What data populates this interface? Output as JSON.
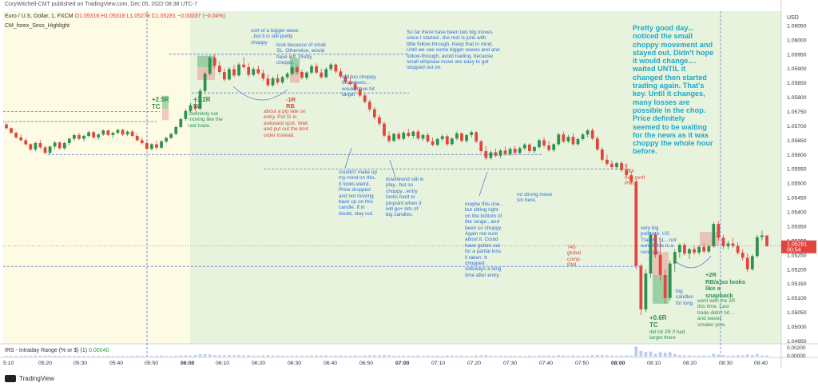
{
  "header": {
    "publish_line": "CoryWitchell-CMT published on TradingView.com, Dec 05, 2022 08:38 UTC-7",
    "symbol_title": "Euro / U.S. Dollar, 1, FXCM",
    "ohlc": "O1.05318 H1.05318 L1.05278 C1.05281 −0.00037 (−0.04%)",
    "indicator": "CM_forex_Sess_Highlight",
    "irs_label": "IRS - Intraday Range (% or $) (1)",
    "irs_value": "0.00040",
    "brand": "TradingView"
  },
  "colors": {
    "up": "#2e9151",
    "down": "#e0463e",
    "session_yellow": "#fdfbe3",
    "session_green": "#e7f3dd",
    "dashed": "#5b7fd6",
    "price_tag": "#e0463e"
  },
  "chart_data": {
    "type": "candlestick",
    "instrument": "EUR/USD",
    "timeframe": "1",
    "currency_label": "USD",
    "y_ticks": [
      "1.06050",
      "1.06000",
      "1.05950",
      "1.05900",
      "1.05850",
      "1.05800",
      "1.05750",
      "1.05700",
      "1.05650",
      "1.05600",
      "1.05550",
      "1.05500",
      "1.05450",
      "1.05400",
      "1.05350",
      "1.05300",
      "1.05250",
      "1.05200",
      "1.05150",
      "1.05100",
      "1.05050",
      "1.05000",
      "1.04950"
    ],
    "x_ticks": [
      "5:10",
      "05:20",
      "05:30",
      "05:40",
      "05:50",
      "06:00",
      "06:10",
      "06:20",
      "06:30",
      "06:40",
      "06:50",
      "07:00",
      "07:10",
      "07:20",
      "07:30",
      "07:40",
      "07:50",
      "08:00",
      "08:10",
      "08:20",
      "08:30",
      "08:40"
    ],
    "bold_x_ticks": [
      "06:00",
      "07:00",
      "08:00"
    ],
    "ylim": [
      1.0494,
      1.061
    ],
    "last_price": "1.05281",
    "countdown": "00:54",
    "irs_ticks": [
      "0.00200",
      "0.00000"
    ],
    "candles": [
      [
        1.05705,
        1.05712,
        1.05688,
        1.05692
      ],
      [
        1.05692,
        1.05695,
        1.05672,
        1.05676
      ],
      [
        1.05676,
        1.0568,
        1.05655,
        1.0566
      ],
      [
        1.0566,
        1.0567,
        1.05646,
        1.0565
      ],
      [
        1.0565,
        1.05656,
        1.0563,
        1.05636
      ],
      [
        1.05636,
        1.0564,
        1.05612,
        1.05618
      ],
      [
        1.05618,
        1.05645,
        1.05612,
        1.0564
      ],
      [
        1.0564,
        1.0565,
        1.0562,
        1.05625
      ],
      [
        1.05625,
        1.0563,
        1.056,
        1.05606
      ],
      [
        1.05606,
        1.05632,
        1.056,
        1.05628
      ],
      [
        1.05628,
        1.05648,
        1.0562,
        1.05642
      ],
      [
        1.05642,
        1.05646,
        1.05618,
        1.05622
      ],
      [
        1.05622,
        1.05645,
        1.05616,
        1.0564
      ],
      [
        1.0564,
        1.0566,
        1.05632,
        1.05655
      ],
      [
        1.05655,
        1.05672,
        1.05648,
        1.05668
      ],
      [
        1.05668,
        1.05676,
        1.0565,
        1.05655
      ],
      [
        1.05655,
        1.0567,
        1.05646,
        1.05665
      ],
      [
        1.05665,
        1.05682,
        1.0566,
        1.05678
      ],
      [
        1.05678,
        1.05682,
        1.05655,
        1.0566
      ],
      [
        1.0566,
        1.05675,
        1.05652,
        1.0567
      ],
      [
        1.0567,
        1.05688,
        1.05665,
        1.05684
      ],
      [
        1.05684,
        1.05688,
        1.05664,
        1.05668
      ],
      [
        1.05668,
        1.0568,
        1.05658,
        1.05676
      ],
      [
        1.05676,
        1.0569,
        1.0567,
        1.05686
      ],
      [
        1.05686,
        1.0569,
        1.05665,
        1.0567
      ],
      [
        1.0567,
        1.05684,
        1.05664,
        1.0568
      ],
      [
        1.0568,
        1.05686,
        1.0566,
        1.05665
      ],
      [
        1.05665,
        1.05675,
        1.05645,
        1.0565
      ],
      [
        1.0565,
        1.0566,
        1.05635,
        1.0564
      ],
      [
        1.0564,
        1.05646,
        1.05616,
        1.0562
      ],
      [
        1.0562,
        1.0564,
        1.05614,
        1.05636
      ],
      [
        1.05636,
        1.05648,
        1.05618,
        1.05624
      ],
      [
        1.05624,
        1.0565,
        1.0562,
        1.05646
      ],
      [
        1.05646,
        1.05662,
        1.0564,
        1.05658
      ],
      [
        1.05658,
        1.05676,
        1.05654,
        1.05672
      ],
      [
        1.05672,
        1.057,
        1.05668,
        1.05696
      ],
      [
        1.05696,
        1.05728,
        1.05692,
        1.05724
      ],
      [
        1.05724,
        1.0576,
        1.05718,
        1.05752
      ],
      [
        1.05752,
        1.0578,
        1.05745,
        1.05772
      ],
      [
        1.05772,
        1.058,
        1.05752,
        1.0576
      ],
      [
        1.0576,
        1.0583,
        1.05755,
        1.05822
      ],
      [
        1.05822,
        1.0589,
        1.05815,
        1.05882
      ],
      [
        1.05882,
        1.05945,
        1.05875,
        1.05938
      ],
      [
        1.05938,
        1.05948,
        1.059,
        1.0591
      ],
      [
        1.0591,
        1.05925,
        1.0588,
        1.05888
      ],
      [
        1.05888,
        1.059,
        1.05855,
        1.05862
      ],
      [
        1.05862,
        1.05905,
        1.05858,
        1.05898
      ],
      [
        1.05898,
        1.05912,
        1.0587,
        1.05876
      ],
      [
        1.05876,
        1.0592,
        1.05872,
        1.05914
      ],
      [
        1.05914,
        1.0594,
        1.059,
        1.05905
      ],
      [
        1.05905,
        1.05918,
        1.0587,
        1.05878
      ],
      [
        1.05878,
        1.05905,
        1.05872,
        1.05898
      ],
      [
        1.05898,
        1.0591,
        1.05878,
        1.05884
      ],
      [
        1.05884,
        1.05896,
        1.05858,
        1.05865
      ],
      [
        1.05865,
        1.0588,
        1.05835,
        1.05842
      ],
      [
        1.05842,
        1.05872,
        1.05836,
        1.05866
      ],
      [
        1.05866,
        1.0588,
        1.05845,
        1.05852
      ],
      [
        1.05852,
        1.05875,
        1.05846,
        1.0587
      ],
      [
        1.0587,
        1.05888,
        1.05862,
        1.05882
      ],
      [
        1.05882,
        1.0591,
        1.05876,
        1.05904
      ],
      [
        1.05904,
        1.05912,
        1.0588,
        1.05888
      ],
      [
        1.05888,
        1.05896,
        1.05862,
        1.05868
      ],
      [
        1.05868,
        1.0589,
        1.0586,
        1.05886
      ],
      [
        1.05886,
        1.05915,
        1.0588,
        1.05908
      ],
      [
        1.05908,
        1.05918,
        1.0588,
        1.05886
      ],
      [
        1.05886,
        1.059,
        1.05864,
        1.0587
      ],
      [
        1.0587,
        1.05905,
        1.05866,
        1.05898
      ],
      [
        1.05898,
        1.0592,
        1.05892,
        1.05914
      ],
      [
        1.05914,
        1.05918,
        1.05882,
        1.0589
      ],
      [
        1.0589,
        1.05902,
        1.05866,
        1.05872
      ],
      [
        1.05872,
        1.0588,
        1.05848,
        1.05854
      ],
      [
        1.05854,
        1.05872,
        1.0584,
        1.05846
      ],
      [
        1.05846,
        1.05855,
        1.0582,
        1.05826
      ],
      [
        1.05826,
        1.05835,
        1.058,
        1.05806
      ],
      [
        1.05806,
        1.05815,
        1.05778,
        1.05784
      ],
      [
        1.05784,
        1.05792,
        1.0575,
        1.05758
      ],
      [
        1.05758,
        1.05766,
        1.05722,
        1.0573
      ],
      [
        1.0573,
        1.0574,
        1.057,
        1.05708
      ],
      [
        1.05708,
        1.05715,
        1.0566,
        1.05666
      ],
      [
        1.05666,
        1.0568,
        1.0564,
        1.05648
      ],
      [
        1.05648,
        1.05676,
        1.05642,
        1.05672
      ],
      [
        1.05672,
        1.0568,
        1.0565,
        1.05655
      ],
      [
        1.05655,
        1.05682,
        1.0565,
        1.05676
      ],
      [
        1.05676,
        1.0569,
        1.0566,
        1.05665
      ],
      [
        1.05665,
        1.05684,
        1.05656,
        1.0568
      ],
      [
        1.0568,
        1.05688,
        1.0565,
        1.05656
      ],
      [
        1.05656,
        1.05672,
        1.05648,
        1.05668
      ],
      [
        1.05668,
        1.05676,
        1.0564,
        1.05646
      ],
      [
        1.05646,
        1.0566,
        1.05628,
        1.05634
      ],
      [
        1.05634,
        1.05658,
        1.05628,
        1.05654
      ],
      [
        1.05654,
        1.0567,
        1.05645,
        1.05664
      ],
      [
        1.05664,
        1.0567,
        1.0563,
        1.05636
      ],
      [
        1.05636,
        1.0566,
        1.0563,
        1.05656
      ],
      [
        1.05656,
        1.0568,
        1.0565,
        1.05674
      ],
      [
        1.05674,
        1.05678,
        1.05642,
        1.05648
      ],
      [
        1.05648,
        1.05672,
        1.0564,
        1.05668
      ],
      [
        1.05668,
        1.05684,
        1.0566,
        1.05678
      ],
      [
        1.05678,
        1.05682,
        1.0564,
        1.05646
      ],
      [
        1.05646,
        1.05652,
        1.05605,
        1.05612
      ],
      [
        1.05612,
        1.0563,
        1.0558,
        1.05588
      ],
      [
        1.05588,
        1.05614,
        1.05582,
        1.05608
      ],
      [
        1.05608,
        1.0562,
        1.0559,
        1.05596
      ],
      [
        1.05596,
        1.0562,
        1.05588,
        1.05614
      ],
      [
        1.05614,
        1.05628,
        1.05596,
        1.05602
      ],
      [
        1.05602,
        1.05625,
        1.05596,
        1.0562
      ],
      [
        1.0562,
        1.0563,
        1.056,
        1.05606
      ],
      [
        1.05606,
        1.05628,
        1.056,
        1.05622
      ],
      [
        1.05622,
        1.0564,
        1.05615,
        1.05635
      ],
      [
        1.05635,
        1.0564,
        1.05605,
        1.05612
      ],
      [
        1.05612,
        1.0563,
        1.05605,
        1.05626
      ],
      [
        1.05626,
        1.05655,
        1.0562,
        1.0565
      ],
      [
        1.0565,
        1.0566,
        1.05625,
        1.05632
      ],
      [
        1.05632,
        1.05648,
        1.0561,
        1.05616
      ],
      [
        1.05616,
        1.0564,
        1.0561,
        1.05636
      ],
      [
        1.05636,
        1.05676,
        1.0563,
        1.0567
      ],
      [
        1.0567,
        1.0568,
        1.0564,
        1.05646
      ],
      [
        1.05646,
        1.05668,
        1.0564,
        1.05662
      ],
      [
        1.05662,
        1.05674,
        1.0563,
        1.05636
      ],
      [
        1.05636,
        1.0566,
        1.0563,
        1.05654
      ],
      [
        1.05654,
        1.05676,
        1.05648,
        1.0567
      ],
      [
        1.0567,
        1.0569,
        1.0566,
        1.05684
      ],
      [
        1.05684,
        1.05692,
        1.0565,
        1.05656
      ],
      [
        1.05656,
        1.05664,
        1.05612,
        1.05618
      ],
      [
        1.05618,
        1.05625,
        1.05575,
        1.05582
      ],
      [
        1.05582,
        1.056,
        1.0556,
        1.05568
      ],
      [
        1.05568,
        1.0558,
        1.05548,
        1.05556
      ],
      [
        1.05556,
        1.05575,
        1.05548,
        1.0557
      ],
      [
        1.0557,
        1.05578,
        1.0554,
        1.05546
      ],
      [
        1.05546,
        1.0556,
        1.05522,
        1.05528
      ],
      [
        1.05528,
        1.0554,
        1.055,
        1.05506
      ],
      [
        1.05506,
        1.05515,
        1.052,
        1.05212
      ],
      [
        1.05212,
        1.0522,
        1.0504,
        1.0506
      ],
      [
        1.0506,
        1.052,
        1.0505,
        1.05185
      ],
      [
        1.05185,
        1.0533,
        1.0517,
        1.0532
      ],
      [
        1.0532,
        1.0533,
        1.0524,
        1.0525
      ],
      [
        1.0525,
        1.053,
        1.0516,
        1.0518
      ],
      [
        1.0518,
        1.052,
        1.0508,
        1.051
      ],
      [
        1.051,
        1.0523,
        1.0509,
        1.0522
      ],
      [
        1.0522,
        1.0527,
        1.0519,
        1.0526
      ],
      [
        1.0526,
        1.0529,
        1.0524,
        1.05285
      ],
      [
        1.05285,
        1.05292,
        1.05248,
        1.05255
      ],
      [
        1.05255,
        1.05275,
        1.05236,
        1.0527
      ],
      [
        1.0527,
        1.05282,
        1.0525,
        1.05258
      ],
      [
        1.05258,
        1.05285,
        1.0525,
        1.05278
      ],
      [
        1.05278,
        1.0529,
        1.05255,
        1.05262
      ],
      [
        1.05262,
        1.05285,
        1.05255,
        1.0528
      ],
      [
        1.0528,
        1.05365,
        1.05275,
        1.05358
      ],
      [
        1.05358,
        1.05368,
        1.053,
        1.0531
      ],
      [
        1.0531,
        1.0532,
        1.0527,
        1.0528
      ],
      [
        1.0528,
        1.053,
        1.0527,
        1.0529
      ],
      [
        1.0529,
        1.0531,
        1.05275,
        1.05282
      ],
      [
        1.05282,
        1.05295,
        1.0525,
        1.05258
      ],
      [
        1.05258,
        1.0527,
        1.0523,
        1.0524
      ],
      [
        1.0524,
        1.05255,
        1.0519,
        1.052
      ],
      [
        1.052,
        1.05252,
        1.05195,
        1.05246
      ],
      [
        1.05246,
        1.0532,
        1.0524,
        1.05312
      ],
      [
        1.05312,
        1.05335,
        1.053,
        1.05318
      ],
      [
        1.05318,
        1.05318,
        1.05278,
        1.05281
      ]
    ]
  },
  "annotations": [
    {
      "text": "sort of a bigger wave.\n..but it is still pretty\nchoppy",
      "color": "blue"
    },
    {
      "text": "took because of small\nSL. Otherwise, would\nhave left. Pretty\nchoppy.",
      "color": "blue"
    },
    {
      "text": "So far there have been two big moves\nsince I started...the rest is junk with\nlittle follow-through. Keep that in mind.\nUntil we see some bigger waves and and\nfollow-through, avoid trading, because\nsmall whipsaw move are easy to get\nstopped out on.",
      "color": "blue"
    },
    {
      "text": "Pretty good day...\nnoticed the small\nchoppy movement and\nstayed out. Didn't hope\nit would change....\nwaited UNTIL it\nchanged then started\ntrading again. That's\nkey. Until it changes,\nmany losses are\npossible in the chop.\nPrice definitely\nseemed to be waiting\nfor the news as it was\nchoppy the whole hour\nbefore.",
      "color": "big"
    },
    {
      "text": "still too choppy,\ntiny waves...\nwould have hit\ntarget",
      "color": "blue"
    },
    {
      "text": "+2.5R\nTC",
      "color": "green"
    },
    {
      "text": "+1.2R\nTC",
      "color": "green"
    },
    {
      "text": "-1R\nRB",
      "color": "red"
    },
    {
      "text": "about a pip late on\nentry. Put SI in\nawkward spot. Wait\nand put out the limit\norder instead.",
      "color": "red"
    },
    {
      "text": "Definitely not\nmoving like the\nlast trade.",
      "color": "green"
    },
    {
      "text": "couldn't make up\nmy mind on this.\nIt looks weird.\nPrice dropped\nand not moving\nback up on this\ncandle. If in\ndoubt, stay out.",
      "color": "blue"
    },
    {
      "text": "downtrend still in\nplay...but so\nchoppy...entry\nlooks hard to\npinpoint when it\nwill go+ lots of\nbig candles.",
      "color": "blue"
    },
    {
      "text": "maybe this one...\nbut sitting right\non the bottom of\nthe range...and\nbeen so choppy.\nAgain not sure\nabout it. Could\nhave gotten out\nfor a partial loss\nif taken. It\nchopped\nsideways a long\ntime after entry.",
      "color": "blue"
    },
    {
      "text": "no strong move\nsin here.",
      "color": "blue"
    },
    {
      "text": "8\nISM\nnon-mnft\nPMI",
      "color": "red"
    },
    {
      "text": "745\nglobal\ncomp.\nPMI",
      "color": "red"
    },
    {
      "text": "very big\npullback. US\nTrailing SL...not\nsure if this is a\nreversal.",
      "color": "blue"
    },
    {
      "text": "+2R\nRB/a)so looks\nlike a\nsnapback",
      "color": "green"
    },
    {
      "text": "went with the 2R\nthis time. Last\ntrade didn't hit...\nand waves\nsmaller pow.",
      "color": "green"
    },
    {
      "text": "big\ncandles\nfor long",
      "color": "blue"
    },
    {
      "text": "+0.6R\nTC",
      "color": "green"
    },
    {
      "text": "did hit 2R if had\ntarget there",
      "color": "green"
    }
  ]
}
